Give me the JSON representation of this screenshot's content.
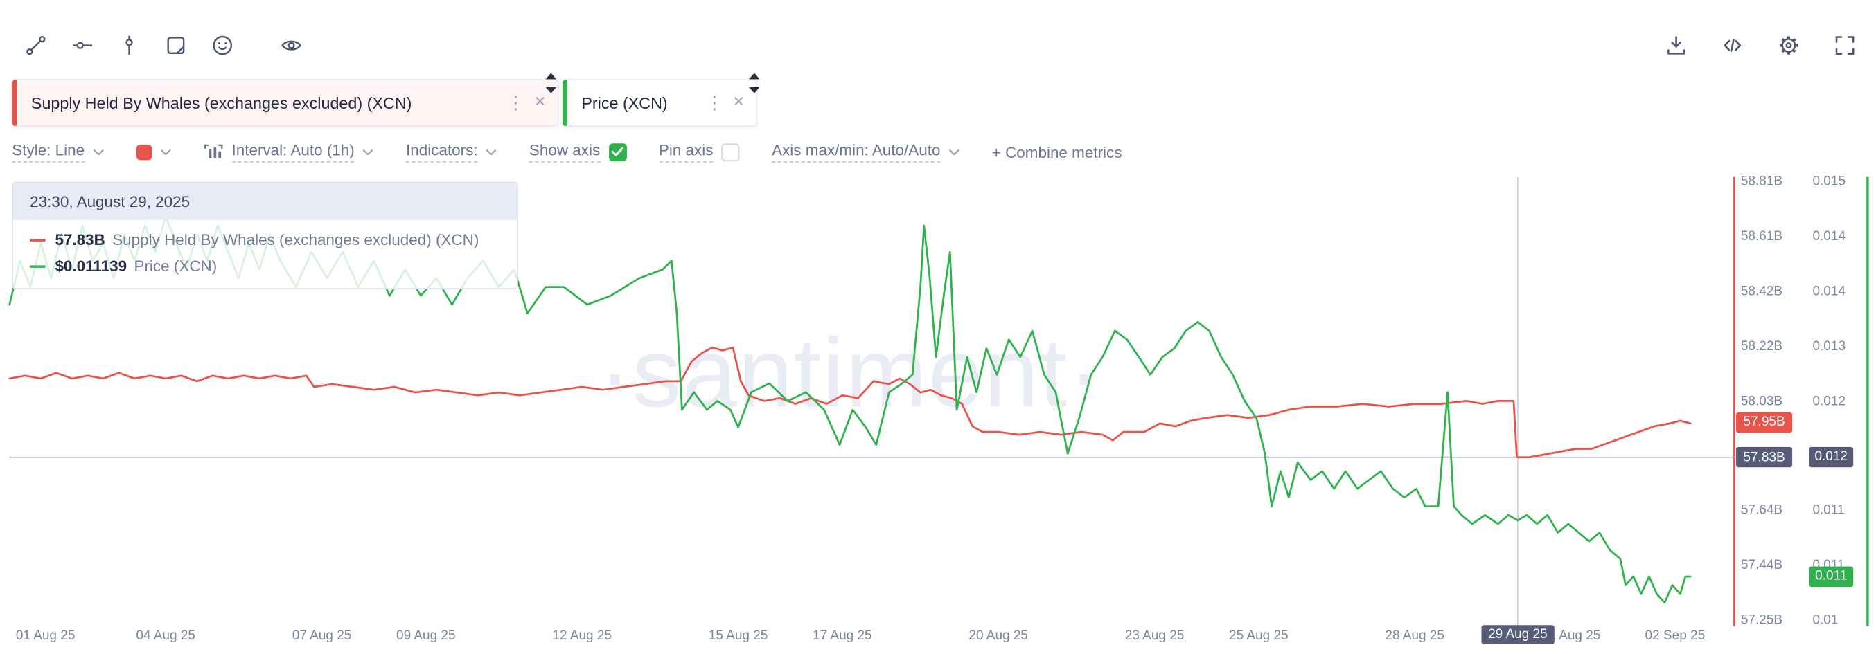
{
  "toolbar": {
    "left_icons": [
      "trend-line",
      "horizontal-marker",
      "vertical-marker",
      "note",
      "emoji",
      "eye"
    ],
    "right_icons": [
      "download",
      "code",
      "settings",
      "fullscreen"
    ]
  },
  "tabs": [
    {
      "label": "Supply Held By Whales (exchanges excluded) (XCN)",
      "color": "#e8534a"
    },
    {
      "label": "Price (XCN)",
      "color": "#30b34e"
    }
  ],
  "settings": {
    "style_label": "Style: Line",
    "swatch_color": "#e8534a",
    "interval_label": "Interval: Auto (1h)",
    "indicators_label": "Indicators:",
    "show_axis_label": "Show axis",
    "show_axis_checked": true,
    "pin_axis_label": "Pin axis",
    "pin_axis_checked": false,
    "axis_maxmin_label": "Axis max/min: Auto/Auto",
    "combine_label": "+ Combine metrics"
  },
  "tooltip": {
    "timestamp": "23:30, August 29, 2025",
    "rows": [
      {
        "value": "57.83B",
        "label": "Supply Held By Whales (exchanges excluded) (XCN)",
        "color": "#e8534a"
      },
      {
        "value": "$0.011139",
        "label": "Price (XCN)",
        "color": "#30b34e"
      }
    ]
  },
  "watermark": "·santiment·",
  "chart_data": {
    "type": "line",
    "x_unit": "days since 01 Aug 2025 00:00",
    "x_axis": {
      "ticks": [
        {
          "day": 0,
          "label": "01 Aug 25"
        },
        {
          "day": 3,
          "label": "04 Aug 25"
        },
        {
          "day": 6,
          "label": "07 Aug 25"
        },
        {
          "day": 8,
          "label": "09 Aug 25"
        },
        {
          "day": 11,
          "label": "12 Aug 25"
        },
        {
          "day": 14,
          "label": "15 Aug 25"
        },
        {
          "day": 16,
          "label": "17 Aug 25"
        },
        {
          "day": 19,
          "label": "20 Aug 25"
        },
        {
          "day": 22,
          "label": "23 Aug 25"
        },
        {
          "day": 24,
          "label": "25 Aug 25"
        },
        {
          "day": 27,
          "label": "28 Aug 25"
        },
        {
          "day": 30,
          "label": "31 Aug 25"
        },
        {
          "day": 32,
          "label": "02 Sep 25"
        }
      ],
      "crosshair_label": "29 Aug 25"
    },
    "y_axis_supply": {
      "min": 57.25,
      "max": 58.81,
      "labels": [
        "58.81B",
        "58.61B",
        "58.42B",
        "58.22B",
        "58.03B",
        "57.83B",
        "57.64B",
        "57.44B",
        "57.25B"
      ]
    },
    "y_axis_price": {
      "min": 0.01,
      "max": 0.015,
      "labels": [
        "0.015",
        "0.014",
        "0.014",
        "0.013",
        "0.012",
        "0.012",
        "0.011",
        "0.011",
        "0.01"
      ]
    },
    "crosshair": {
      "day": 28.979,
      "supply_value": 57.83,
      "price_value": 0.011139
    },
    "badges": {
      "supply_last": {
        "text": "57.95B",
        "value": 57.955,
        "color": "#e8534a"
      },
      "supply_crosshair": {
        "text": "57.83B",
        "value": 57.83,
        "color": "#565c78"
      },
      "price_crosshair": {
        "text": "0.012",
        "value": 0.01186,
        "color": "#565c78"
      },
      "price_last": {
        "text": "0.011",
        "value": 0.0105,
        "color": "#2fb14d"
      }
    },
    "series": [
      {
        "name": "Supply Held By Whales (exchanges excluded) (XCN)",
        "axis": "supply",
        "unit": "B",
        "color": "#e8534a",
        "points": [
          [
            0,
            58.11
          ],
          [
            0.3,
            58.12
          ],
          [
            0.6,
            58.11
          ],
          [
            0.9,
            58.13
          ],
          [
            1.2,
            58.11
          ],
          [
            1.5,
            58.12
          ],
          [
            1.8,
            58.11
          ],
          [
            2.1,
            58.13
          ],
          [
            2.4,
            58.11
          ],
          [
            2.7,
            58.12
          ],
          [
            3,
            58.11
          ],
          [
            3.3,
            58.12
          ],
          [
            3.6,
            58.1
          ],
          [
            3.9,
            58.12
          ],
          [
            4.2,
            58.11
          ],
          [
            4.5,
            58.12
          ],
          [
            4.8,
            58.11
          ],
          [
            5.1,
            58.12
          ],
          [
            5.4,
            58.11
          ],
          [
            5.7,
            58.12
          ],
          [
            5.85,
            58.08
          ],
          [
            6.2,
            58.09
          ],
          [
            6.6,
            58.08
          ],
          [
            7,
            58.07
          ],
          [
            7.4,
            58.08
          ],
          [
            7.8,
            58.06
          ],
          [
            8.2,
            58.07
          ],
          [
            8.6,
            58.06
          ],
          [
            9,
            58.05
          ],
          [
            9.4,
            58.06
          ],
          [
            9.8,
            58.05
          ],
          [
            10.2,
            58.06
          ],
          [
            10.6,
            58.07
          ],
          [
            11,
            58.08
          ],
          [
            11.4,
            58.07
          ],
          [
            11.8,
            58.08
          ],
          [
            12.2,
            58.09
          ],
          [
            12.6,
            58.1
          ],
          [
            12.9,
            58.1
          ],
          [
            13.1,
            58.17
          ],
          [
            13.3,
            58.2
          ],
          [
            13.5,
            58.22
          ],
          [
            13.7,
            58.21
          ],
          [
            13.9,
            58.22
          ],
          [
            14.05,
            58.1
          ],
          [
            14.2,
            58.05
          ],
          [
            14.5,
            58.03
          ],
          [
            14.8,
            58.04
          ],
          [
            15.1,
            58.02
          ],
          [
            15.4,
            58.04
          ],
          [
            15.7,
            58.02
          ],
          [
            16,
            58.05
          ],
          [
            16.3,
            58.04
          ],
          [
            16.6,
            58.1
          ],
          [
            16.9,
            58.09
          ],
          [
            17.1,
            58.11
          ],
          [
            17.3,
            58.09
          ],
          [
            17.5,
            58.06
          ],
          [
            17.7,
            58.07
          ],
          [
            17.9,
            58.05
          ],
          [
            18.1,
            58.04
          ],
          [
            18.3,
            58.02
          ],
          [
            18.5,
            57.94
          ],
          [
            18.7,
            57.92
          ],
          [
            19,
            57.92
          ],
          [
            19.4,
            57.91
          ],
          [
            19.8,
            57.92
          ],
          [
            20.2,
            57.91
          ],
          [
            20.6,
            57.92
          ],
          [
            21,
            57.91
          ],
          [
            21.2,
            57.89
          ],
          [
            21.4,
            57.92
          ],
          [
            21.8,
            57.92
          ],
          [
            22.1,
            57.95
          ],
          [
            22.4,
            57.94
          ],
          [
            22.7,
            57.96
          ],
          [
            23,
            57.97
          ],
          [
            23.4,
            57.98
          ],
          [
            23.8,
            57.97
          ],
          [
            24.2,
            57.98
          ],
          [
            24.6,
            58
          ],
          [
            25,
            58.01
          ],
          [
            25.5,
            58.01
          ],
          [
            26,
            58.02
          ],
          [
            26.5,
            58.01
          ],
          [
            27,
            58.02
          ],
          [
            27.5,
            58.02
          ],
          [
            28,
            58.03
          ],
          [
            28.3,
            58.02
          ],
          [
            28.6,
            58.03
          ],
          [
            28.9,
            58.03
          ],
          [
            28.96,
            57.83
          ],
          [
            29.2,
            57.83
          ],
          [
            29.5,
            57.84
          ],
          [
            29.8,
            57.85
          ],
          [
            30.1,
            57.86
          ],
          [
            30.4,
            57.86
          ],
          [
            30.7,
            57.88
          ],
          [
            31,
            57.9
          ],
          [
            31.3,
            57.92
          ],
          [
            31.6,
            57.94
          ],
          [
            31.9,
            57.95
          ],
          [
            32.1,
            57.96
          ],
          [
            32.3,
            57.95
          ]
        ]
      },
      {
        "name": "Price (XCN)",
        "axis": "price",
        "unit": "USD",
        "color": "#30b34e",
        "points": [
          [
            0,
            0.0136
          ],
          [
            0.2,
            0.0141
          ],
          [
            0.4,
            0.0138
          ],
          [
            0.6,
            0.0143
          ],
          [
            0.8,
            0.0139
          ],
          [
            1,
            0.0144
          ],
          [
            1.2,
            0.014
          ],
          [
            1.4,
            0.0145
          ],
          [
            1.6,
            0.0141
          ],
          [
            1.8,
            0.0143
          ],
          [
            2,
            0.0139
          ],
          [
            2.2,
            0.0144
          ],
          [
            2.4,
            0.0141
          ],
          [
            2.6,
            0.0145
          ],
          [
            2.8,
            0.0142
          ],
          [
            3,
            0.0146
          ],
          [
            3.2,
            0.0143
          ],
          [
            3.4,
            0.014
          ],
          [
            3.6,
            0.0144
          ],
          [
            3.8,
            0.0141
          ],
          [
            4,
            0.0145
          ],
          [
            4.2,
            0.0142
          ],
          [
            4.4,
            0.0139
          ],
          [
            4.6,
            0.0143
          ],
          [
            4.8,
            0.014
          ],
          [
            5,
            0.0144
          ],
          [
            5.2,
            0.0141
          ],
          [
            5.5,
            0.0138
          ],
          [
            5.8,
            0.0142
          ],
          [
            6.1,
            0.0139
          ],
          [
            6.4,
            0.0142
          ],
          [
            6.7,
            0.0138
          ],
          [
            7,
            0.0141
          ],
          [
            7.3,
            0.0137
          ],
          [
            7.6,
            0.014
          ],
          [
            7.9,
            0.0137
          ],
          [
            8.2,
            0.0139
          ],
          [
            8.5,
            0.0136
          ],
          [
            8.8,
            0.0139
          ],
          [
            9.1,
            0.0141
          ],
          [
            9.4,
            0.0138
          ],
          [
            9.7,
            0.014
          ],
          [
            9.95,
            0.0135
          ],
          [
            10.3,
            0.0138
          ],
          [
            10.65,
            0.0138
          ],
          [
            11.1,
            0.0136
          ],
          [
            11.55,
            0.0137
          ],
          [
            12.1,
            0.0139
          ],
          [
            12.55,
            0.014
          ],
          [
            12.72,
            0.0141
          ],
          [
            12.82,
            0.0135
          ],
          [
            12.92,
            0.0124
          ],
          [
            13.15,
            0.0126
          ],
          [
            13.4,
            0.0124
          ],
          [
            13.6,
            0.0125
          ],
          [
            13.85,
            0.0124
          ],
          [
            14,
            0.0122
          ],
          [
            14.25,
            0.0126
          ],
          [
            14.6,
            0.0127
          ],
          [
            14.95,
            0.0125
          ],
          [
            15.3,
            0.0126
          ],
          [
            15.65,
            0.0124
          ],
          [
            15.95,
            0.012
          ],
          [
            16.2,
            0.0124
          ],
          [
            16.45,
            0.0122
          ],
          [
            16.65,
            0.012
          ],
          [
            16.9,
            0.0126
          ],
          [
            17.15,
            0.0127
          ],
          [
            17.35,
            0.0128
          ],
          [
            17.5,
            0.0138
          ],
          [
            17.57,
            0.0145
          ],
          [
            17.68,
            0.0139
          ],
          [
            17.8,
            0.013
          ],
          [
            17.95,
            0.0137
          ],
          [
            18.07,
            0.0142
          ],
          [
            18.2,
            0.0124
          ],
          [
            18.4,
            0.013
          ],
          [
            18.58,
            0.0126
          ],
          [
            18.77,
            0.0131
          ],
          [
            18.97,
            0.0128
          ],
          [
            19.2,
            0.0132
          ],
          [
            19.42,
            0.013
          ],
          [
            19.65,
            0.0133
          ],
          [
            19.88,
            0.0128
          ],
          [
            20.1,
            0.0126
          ],
          [
            20.33,
            0.0119
          ],
          [
            20.55,
            0.0123
          ],
          [
            20.78,
            0.0128
          ],
          [
            21,
            0.013
          ],
          [
            21.24,
            0.0133
          ],
          [
            21.47,
            0.0132
          ],
          [
            21.7,
            0.013
          ],
          [
            21.92,
            0.0128
          ],
          [
            22.15,
            0.013
          ],
          [
            22.38,
            0.0131
          ],
          [
            22.6,
            0.0133
          ],
          [
            22.83,
            0.0134
          ],
          [
            23.05,
            0.0133
          ],
          [
            23.28,
            0.013
          ],
          [
            23.5,
            0.0128
          ],
          [
            23.73,
            0.0125
          ],
          [
            23.96,
            0.0123
          ],
          [
            24.12,
            0.0119
          ],
          [
            24.25,
            0.0113
          ],
          [
            24.42,
            0.0117
          ],
          [
            24.58,
            0.0114
          ],
          [
            24.75,
            0.0118
          ],
          [
            25,
            0.0116
          ],
          [
            25.22,
            0.0117
          ],
          [
            25.45,
            0.0115
          ],
          [
            25.67,
            0.0117
          ],
          [
            25.9,
            0.0115
          ],
          [
            26.12,
            0.0116
          ],
          [
            26.35,
            0.0117
          ],
          [
            26.58,
            0.0115
          ],
          [
            26.8,
            0.0114
          ],
          [
            27.03,
            0.0115
          ],
          [
            27.2,
            0.0113
          ],
          [
            27.45,
            0.0113
          ],
          [
            27.63,
            0.0126
          ],
          [
            27.75,
            0.0113
          ],
          [
            27.9,
            0.0112
          ],
          [
            28.1,
            0.0111
          ],
          [
            28.35,
            0.0112
          ],
          [
            28.6,
            0.0111
          ],
          [
            28.8,
            0.0112
          ],
          [
            28.979,
            0.011139
          ],
          [
            29.15,
            0.0112
          ],
          [
            29.35,
            0.0111
          ],
          [
            29.55,
            0.0112
          ],
          [
            29.75,
            0.011
          ],
          [
            29.95,
            0.0111
          ],
          [
            30.15,
            0.011
          ],
          [
            30.35,
            0.0109
          ],
          [
            30.55,
            0.011
          ],
          [
            30.75,
            0.0108
          ],
          [
            30.95,
            0.0107
          ],
          [
            31.05,
            0.0104
          ],
          [
            31.2,
            0.0105
          ],
          [
            31.35,
            0.0103
          ],
          [
            31.5,
            0.0105
          ],
          [
            31.65,
            0.0103
          ],
          [
            31.8,
            0.0102
          ],
          [
            31.95,
            0.0104
          ],
          [
            32.1,
            0.0103
          ],
          [
            32.2,
            0.0105
          ],
          [
            32.3,
            0.0105
          ]
        ]
      }
    ]
  }
}
